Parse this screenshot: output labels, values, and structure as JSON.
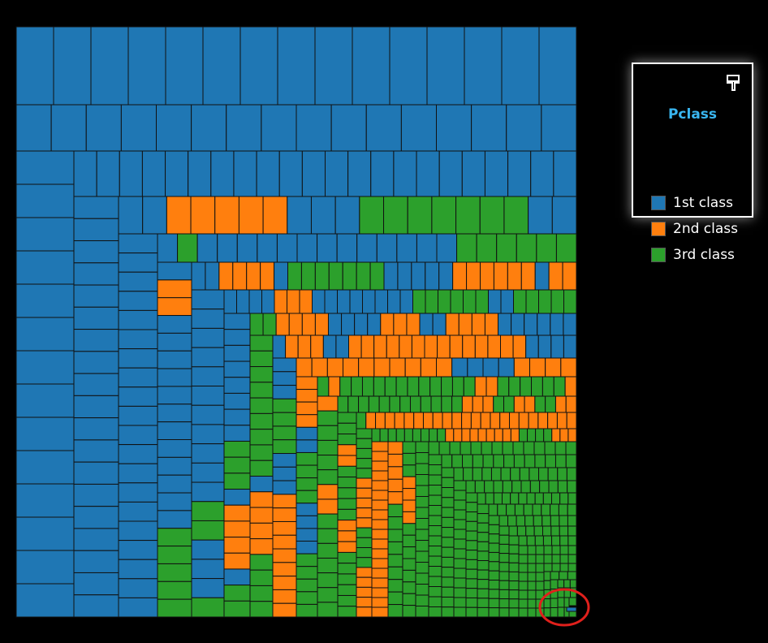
{
  "colors": {
    "background": "#000000",
    "first_class": "#1f77b4",
    "second_class": "#ff7f0e",
    "third_class": "#2ca02c",
    "cell_border": "#111111",
    "highlight_circle": "#e0201c"
  },
  "legend": {
    "title": "Pclass",
    "icon": "paint-brush-icon",
    "items": [
      {
        "label": "1st class",
        "color": "#1f77b4"
      },
      {
        "label": "2nd class",
        "color": "#ff7f0e"
      },
      {
        "label": "3rd class",
        "color": "#2ca02c"
      }
    ]
  },
  "chart_data": {
    "type": "treemap",
    "title": "",
    "legend_title": "Pclass",
    "legend_position": "right",
    "categories": [
      "1st class",
      "2nd class",
      "3rd class"
    ],
    "series": [
      {
        "name": "1st class",
        "cell_count_approx": 216
      },
      {
        "name": "2nd class",
        "cell_count_approx": 184
      },
      {
        "name": "3rd class",
        "cell_count_approx": 491
      }
    ],
    "annotation": "red hand-drawn circle around the smallest cells in the bottom-right corner"
  }
}
